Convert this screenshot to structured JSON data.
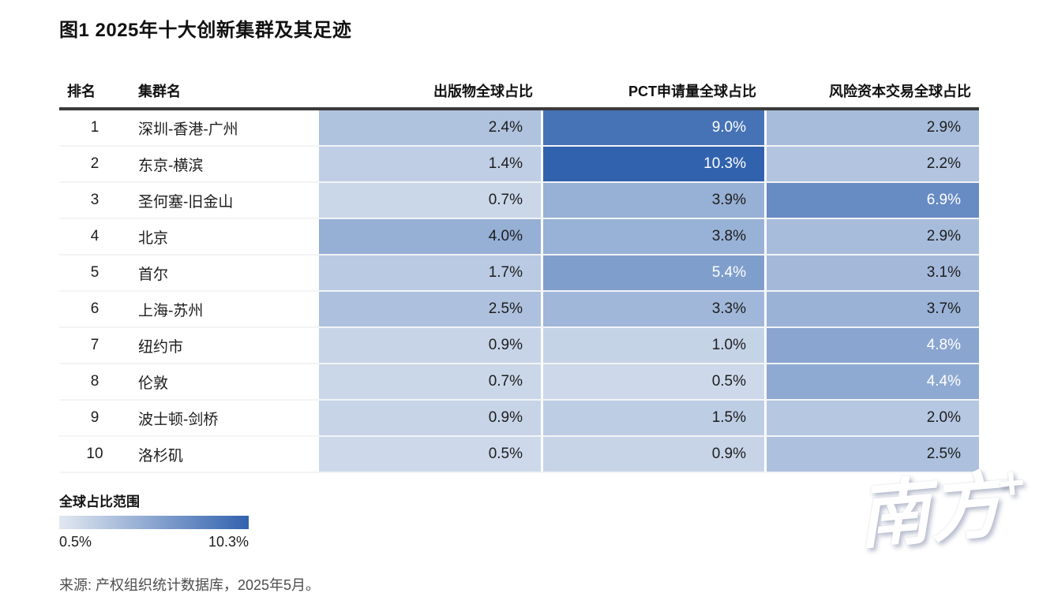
{
  "chart_data": {
    "type": "heatmap",
    "title": "图1 2025年十大创新集群及其足迹",
    "ranks": [
      1,
      2,
      3,
      4,
      5,
      6,
      7,
      8,
      9,
      10
    ],
    "categories": [
      "深圳-香港-广州",
      "东京-横滨",
      "圣何塞-旧金山",
      "北京",
      "首尔",
      "上海-苏州",
      "纽约市",
      "伦敦",
      "波士顿-剑桥",
      "洛杉矶"
    ],
    "series": [
      {
        "name": "出版物全球占比",
        "unit": "%",
        "values": [
          2.4,
          1.4,
          0.7,
          4.0,
          1.7,
          2.5,
          0.9,
          0.7,
          0.9,
          0.5
        ]
      },
      {
        "name": "PCT申请量全球占比",
        "unit": "%",
        "values": [
          9.0,
          10.3,
          3.9,
          3.8,
          5.4,
          3.3,
          1.0,
          0.5,
          1.5,
          0.9
        ]
      },
      {
        "name": "风险资本交易全球占比",
        "unit": "%",
        "values": [
          2.9,
          2.2,
          6.9,
          2.9,
          3.1,
          3.7,
          4.8,
          4.4,
          2.0,
          2.5
        ]
      }
    ],
    "color_scale": {
      "label": "全球占比范围",
      "min": 0.5,
      "max": 10.3,
      "min_color": "#cdd9ea",
      "max_color": "#3162ae"
    },
    "legend_position": "bottom-left",
    "source": "来源: 产权组织统计数据库，2025年5月。"
  },
  "table": {
    "headers": [
      "排名",
      "集群名",
      "出版物全球占比",
      "PCT申请量全球占比",
      "风险资本交易全球占比"
    ]
  },
  "legend": {
    "label": "全球占比范围",
    "min_label": "0.5%",
    "max_label": "10.3%"
  },
  "source": {
    "text": "来源: 产权组织统计数据库，2025年5月。"
  },
  "watermark": {
    "text": "南方",
    "plus": "+"
  },
  "colors": {
    "scale_min": "#cdd9ea",
    "scale_max": "#3162ae",
    "legend_gradient_start": "#e2e8f1",
    "header_rule": "#3a3a3a",
    "value_text_dark": "#1d1d1d",
    "value_text_light": "#ffffff",
    "white_text_threshold": 4.2
  }
}
